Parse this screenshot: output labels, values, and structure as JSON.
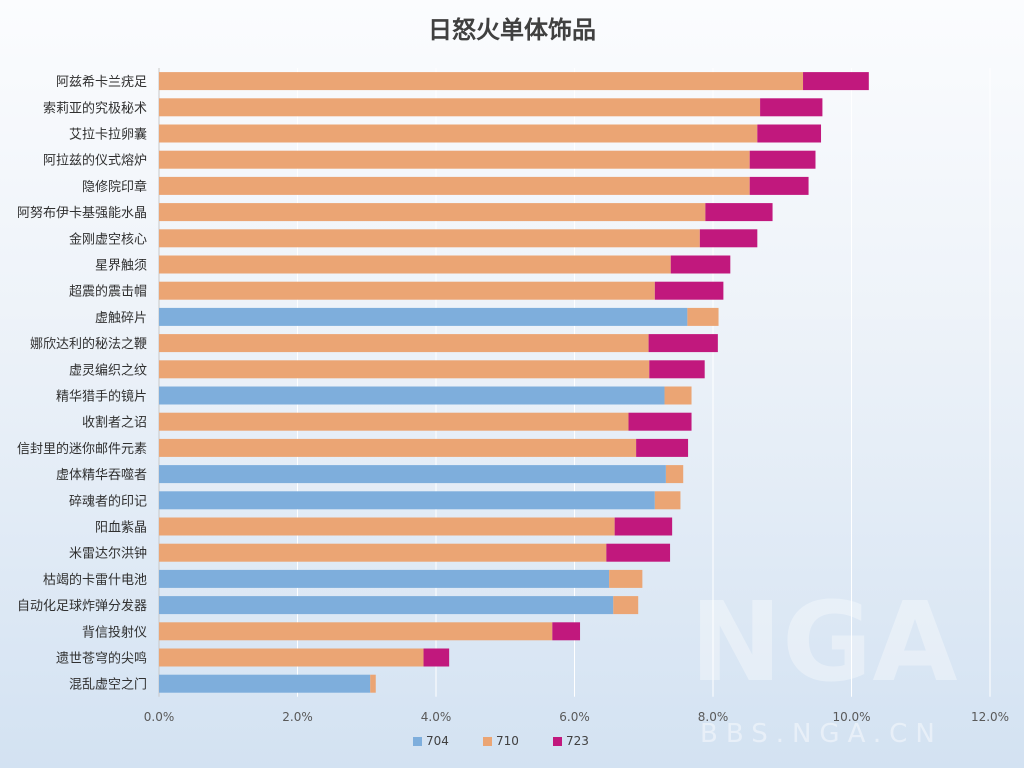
{
  "chart_data": {
    "type": "bar",
    "orientation": "horizontal",
    "stacked": true,
    "title": "日怒火单体饰品",
    "xlabel": "",
    "ylabel": "",
    "xlim": [
      0,
      0.12
    ],
    "xticks": [
      "0.0%",
      "2.0%",
      "4.0%",
      "6.0%",
      "8.0%",
      "10.0%",
      "12.0%"
    ],
    "xtick_values": [
      0,
      0.02,
      0.04,
      0.06,
      0.08,
      0.1,
      0.12
    ],
    "grid": true,
    "legend_position": "bottom",
    "categories": [
      "阿兹希卡兰疣足",
      "索莉亚的究极秘术",
      "艾拉卡拉卵囊",
      "阿拉兹的仪式熔炉",
      "隐修院印章",
      "阿努布伊卡基强能水晶",
      "金刚虚空核心",
      "星界触须",
      "超震的震击帽",
      "虚触碎片",
      "娜欣达利的秘法之鞭",
      "虚灵编织之纹",
      "精华猎手的镜片",
      "收割者之诏",
      "信封里的迷你邮件元素",
      "虚体精华吞噬者",
      "碎魂者的印记",
      "阳血紫晶",
      "米雷达尔洪钟",
      "枯竭的卡雷什电池",
      "自动化足球炸弹分发器",
      "背信投射仪",
      "遗世苍穹的尖鸣",
      "混乱虚空之门"
    ],
    "series": [
      {
        "name": "704",
        "color": "#7eaedc",
        "values": [
          0,
          0,
          0,
          0,
          0,
          0,
          0,
          0,
          0,
          0.0763,
          0,
          0,
          0.073,
          0,
          0,
          0.0732,
          0.0716,
          0,
          0,
          0.065,
          0.0656,
          0,
          0,
          0.0305
        ]
      },
      {
        "name": "710",
        "color": "#eba574",
        "values": [
          0.093,
          0.0868,
          0.0864,
          0.0853,
          0.0853,
          0.0789,
          0.0781,
          0.0739,
          0.0716,
          0.0045,
          0.0707,
          0.0708,
          0.0039,
          0.0678,
          0.0689,
          0.0025,
          0.0037,
          0.0658,
          0.0646,
          0.0048,
          0.0036,
          0.0568,
          0.0382,
          0.0008
        ]
      },
      {
        "name": "723",
        "color": "#c1187d",
        "values": [
          0.0095,
          0.009,
          0.0092,
          0.0095,
          0.0085,
          0.0097,
          0.0083,
          0.0086,
          0.0099,
          0,
          0.01,
          0.008,
          0,
          0.0091,
          0.0075,
          0,
          0,
          0.0083,
          0.0092,
          0,
          0,
          0.004,
          0.0037,
          0
        ]
      }
    ]
  },
  "watermark": {
    "logo": "NGA",
    "url": "BBS.NGA.CN"
  }
}
